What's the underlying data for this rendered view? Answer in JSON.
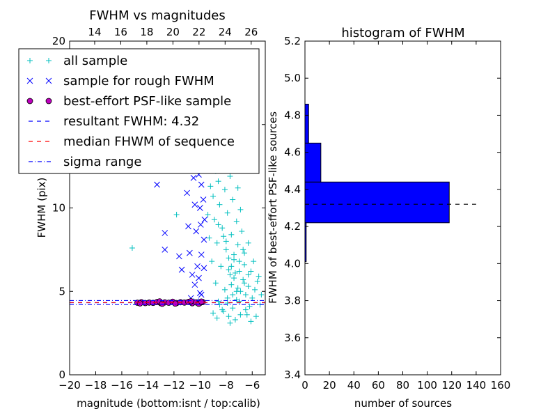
{
  "figure": {
    "background": "#ffffff"
  },
  "chart_data": [
    {
      "type": "scatter",
      "title": "FWHM vs magnitudes",
      "xlabel": "magnitude (bottom:isnt / top:calib)",
      "ylabel": "FWHM (pix)",
      "xlim": [
        -20,
        -5
      ],
      "ylim": [
        0,
        20
      ],
      "top_xlim": [
        12.08,
        27.08
      ],
      "x_ticks": [
        -20,
        -18,
        -16,
        -14,
        -12,
        -10,
        -8,
        -6
      ],
      "x_tick_labels": [
        "−20",
        "−18",
        "−16",
        "−14",
        "−12",
        "−10",
        "−8",
        "−6"
      ],
      "y_ticks": [
        0,
        5,
        10,
        15,
        20
      ],
      "y_tick_labels": [
        "0",
        "5",
        "10",
        "15",
        "20"
      ],
      "top_ticks": [
        14,
        16,
        18,
        20,
        22,
        24,
        26
      ],
      "top_tick_labels": [
        "14",
        "16",
        "18",
        "20",
        "22",
        "24",
        "26"
      ],
      "grid": false,
      "legend_position": "upper-left",
      "colors": {
        "all_sample": "#00bfbf",
        "rough_sample": "#0000ff",
        "psf_face": "#bf00bf",
        "resultant": "#0000ff",
        "median": "#ff0000",
        "sigma": "#0000ff"
      },
      "legend": [
        {
          "label": "all sample",
          "marker": "plus",
          "color": "#00bfbf"
        },
        {
          "label": "sample for rough FWHM",
          "marker": "x",
          "color": "#0000ff"
        },
        {
          "label": "best-effort PSF-like sample",
          "marker": "circle",
          "color": "#bf00bf"
        },
        {
          "label": "resultant FWHM: 4.32",
          "marker": "dashed",
          "color": "#0000ff"
        },
        {
          "label": "median FHWM of sequence",
          "marker": "dashed",
          "color": "#ff0000"
        },
        {
          "label": "sigma range",
          "marker": "dashdot",
          "color": "#0000ff"
        }
      ],
      "series": [
        {
          "name": "all sample",
          "marker": "plus",
          "color": "#00bfbf",
          "points": [
            [
              -7.8,
              3.5
            ],
            [
              -7.5,
              4.0
            ],
            [
              -7.2,
              4.5
            ],
            [
              -6.9,
              5.0
            ],
            [
              -6.6,
              5.5
            ],
            [
              -6.3,
              6.0
            ],
            [
              -8.2,
              3.8
            ],
            [
              -7.9,
              4.6
            ],
            [
              -7.6,
              5.4
            ],
            [
              -7.3,
              6.1
            ],
            [
              -7.0,
              6.8
            ],
            [
              -6.7,
              7.5
            ],
            [
              -8.5,
              4.2
            ],
            [
              -8.1,
              5.1
            ],
            [
              -7.7,
              6.0
            ],
            [
              -7.4,
              6.9
            ],
            [
              -7.1,
              7.8
            ],
            [
              -6.8,
              8.6
            ],
            [
              -8.8,
              5.5
            ],
            [
              -8.4,
              6.5
            ],
            [
              -8.0,
              7.5
            ],
            [
              -7.6,
              8.4
            ],
            [
              -7.2,
              9.2
            ],
            [
              -6.9,
              9.9
            ],
            [
              -9.1,
              6.8
            ],
            [
              -8.7,
              7.9
            ],
            [
              -8.3,
              8.8
            ],
            [
              -7.9,
              9.7
            ],
            [
              -7.5,
              10.5
            ],
            [
              -7.1,
              11.2
            ],
            [
              -9.3,
              8.2
            ],
            [
              -8.9,
              9.3
            ],
            [
              -8.5,
              10.2
            ],
            [
              -8.1,
              11.1
            ],
            [
              -7.7,
              11.9
            ],
            [
              -7.3,
              12.6
            ],
            [
              -9.4,
              9.6
            ],
            [
              -9.0,
              10.7
            ],
            [
              -8.6,
              11.6
            ],
            [
              -8.2,
              12.4
            ],
            [
              -7.8,
              13.2
            ],
            [
              -7.4,
              13.9
            ],
            [
              -9.2,
              11.3
            ],
            [
              -8.8,
              12.2
            ],
            [
              -8.4,
              13.0
            ],
            [
              -8.0,
              13.7
            ],
            [
              -7.6,
              14.5
            ],
            [
              -7.2,
              15.1
            ],
            [
              -8.7,
              3.4
            ],
            [
              -8.3,
              3.9
            ],
            [
              -7.9,
              4.3
            ],
            [
              -7.5,
              4.8
            ],
            [
              -7.1,
              5.2
            ],
            [
              -6.7,
              5.7
            ],
            [
              -6.4,
              3.6
            ],
            [
              -6.2,
              4.1
            ],
            [
              -6.0,
              4.6
            ],
            [
              -5.8,
              5.1
            ],
            [
              -5.6,
              5.6
            ],
            [
              -5.4,
              4.2
            ],
            [
              -7.7,
              3.1
            ],
            [
              -7.3,
              3.3
            ],
            [
              -6.9,
              3.6
            ],
            [
              -6.5,
              3.9
            ],
            [
              -6.1,
              3.2
            ],
            [
              -5.7,
              3.5
            ],
            [
              -8.0,
              8.0
            ],
            [
              -7.8,
              7.0
            ],
            [
              -7.6,
              6.5
            ],
            [
              -7.4,
              5.8
            ],
            [
              -7.2,
              5.0
            ],
            [
              -7.0,
              4.4
            ],
            [
              -8.6,
              9.0
            ],
            [
              -8.2,
              8.3
            ],
            [
              -7.8,
              6.3
            ],
            [
              -7.4,
              7.2
            ],
            [
              -7.0,
              6.2
            ],
            [
              -6.6,
              6.6
            ],
            [
              -9.5,
              12.6
            ],
            [
              -9.1,
              13.4
            ],
            [
              -8.7,
              14.3
            ],
            [
              -8.3,
              15.2
            ],
            [
              -7.9,
              16.0
            ],
            [
              -7.5,
              16.8
            ],
            [
              -9.0,
              3.7
            ],
            [
              -8.6,
              4.4
            ],
            [
              -6.5,
              4.8
            ],
            [
              -6.3,
              5.3
            ],
            [
              -6.1,
              6.2
            ],
            [
              -5.9,
              6.8
            ],
            [
              -15.2,
              7.6
            ],
            [
              -11.8,
              9.6
            ],
            [
              -6.6,
              7.3
            ],
            [
              -6.3,
              7.9
            ],
            [
              -5.5,
              5.9
            ],
            [
              -5.3,
              4.8
            ]
          ]
        },
        {
          "name": "sample for rough FWHM",
          "marker": "x",
          "color": "#0000ff",
          "points": [
            [
              -13.3,
              11.4
            ],
            [
              -12.7,
              8.5
            ],
            [
              -12.7,
              7.5
            ],
            [
              -12.2,
              12.5
            ],
            [
              -11.5,
              15.2
            ],
            [
              -11.6,
              7.1
            ],
            [
              -11.4,
              6.3
            ],
            [
              -11.0,
              14.3
            ],
            [
              -11.0,
              10.9
            ],
            [
              -10.9,
              8.9
            ],
            [
              -10.8,
              7.3
            ],
            [
              -10.6,
              13.4
            ],
            [
              -10.5,
              11.8
            ],
            [
              -10.4,
              10.2
            ],
            [
              -10.3,
              8.6
            ],
            [
              -10.2,
              13.5
            ],
            [
              -10.1,
              12.0
            ],
            [
              -10.0,
              10.0
            ],
            [
              -9.95,
              9.0
            ],
            [
              -9.9,
              7.2
            ],
            [
              -10.6,
              6.0
            ],
            [
              -10.4,
              5.4
            ],
            [
              -10.2,
              6.5
            ],
            [
              -10.1,
              5.8
            ],
            [
              -10.0,
              4.9
            ],
            [
              -9.9,
              11.4
            ],
            [
              -9.85,
              13.0
            ],
            [
              -9.8,
              14.6
            ],
            [
              -9.75,
              10.5
            ],
            [
              -9.7,
              8.1
            ],
            [
              -10.7,
              4.6
            ],
            [
              -10.3,
              4.4
            ],
            [
              -9.9,
              4.8
            ],
            [
              -9.7,
              6.4
            ],
            [
              -9.65,
              9.3
            ],
            [
              -11.2,
              13.9
            ],
            [
              -10.8,
              12.6
            ],
            [
              -10.4,
              14.8
            ],
            [
              -10.0,
              14.1
            ],
            [
              -9.7,
              12.4
            ]
          ]
        },
        {
          "name": "best-effort PSF-like sample",
          "marker": "circle",
          "color": "#bf00bf",
          "points": [
            [
              -14.8,
              4.32
            ],
            [
              -14.5,
              4.35
            ],
            [
              -14.2,
              4.3
            ],
            [
              -13.9,
              4.33
            ],
            [
              -13.6,
              4.31
            ],
            [
              -13.3,
              4.36
            ],
            [
              -13.0,
              4.29
            ],
            [
              -12.7,
              4.34
            ],
            [
              -12.4,
              4.32
            ],
            [
              -12.1,
              4.38
            ],
            [
              -11.8,
              4.3
            ],
            [
              -11.5,
              4.35
            ],
            [
              -11.2,
              4.33
            ],
            [
              -10.9,
              4.37
            ],
            [
              -10.6,
              4.29
            ],
            [
              -10.3,
              4.34
            ],
            [
              -10.0,
              4.31
            ],
            [
              -9.8,
              4.36
            ],
            [
              -14.6,
              4.28
            ],
            [
              -13.1,
              4.4
            ],
            [
              -11.9,
              4.27
            ],
            [
              -10.7,
              4.41
            ],
            [
              -10.1,
              4.26
            ],
            [
              -9.9,
              4.39
            ],
            [
              -12.9,
              4.26
            ]
          ]
        }
      ],
      "hlines": [
        {
          "name": "resultant FWHM: 4.32",
          "y": 4.32,
          "style": "dashed",
          "color": "#0000ff"
        },
        {
          "name": "median FHWM of sequence",
          "y": 4.33,
          "style": "dashed",
          "color": "#ff0000"
        },
        {
          "name": "sigma range",
          "y": 4.21,
          "style": "dashdot",
          "color": "#0000ff"
        },
        {
          "name": "sigma range",
          "y": 4.45,
          "style": "dashdot",
          "color": "#0000ff"
        }
      ]
    },
    {
      "type": "bar",
      "orientation": "horizontal",
      "title": "histogram of FWHM",
      "xlabel": "number of sources",
      "ylabel": "FWHM of best-effort PSF-like sources",
      "xlim": [
        0,
        160
      ],
      "ylim": [
        3.4,
        5.2
      ],
      "x_ticks": [
        0,
        20,
        40,
        60,
        80,
        100,
        120,
        140,
        160
      ],
      "x_tick_labels": [
        "0",
        "20",
        "40",
        "60",
        "80",
        "100",
        "120",
        "140",
        "160"
      ],
      "y_ticks": [
        3.4,
        3.6,
        3.8,
        4.0,
        4.2,
        4.4,
        4.6,
        4.8,
        5.0,
        5.2
      ],
      "y_tick_labels": [
        "3.4",
        "3.6",
        "3.8",
        "4.0",
        "4.2",
        "4.4",
        "4.6",
        "4.8",
        "5.0",
        "5.2"
      ],
      "grid": false,
      "bar_color": "#0000ff",
      "bins": [
        {
          "from": 4.01,
          "to": 4.22,
          "count": 1
        },
        {
          "from": 4.22,
          "to": 4.44,
          "count": 118
        },
        {
          "from": 4.44,
          "to": 4.65,
          "count": 13
        },
        {
          "from": 4.65,
          "to": 4.86,
          "count": 3
        },
        {
          "from": 4.86,
          "to": 5.08,
          "count": 0
        }
      ],
      "hline": {
        "y": 4.32,
        "x_from": 0,
        "x_to": 140,
        "style": "dashed",
        "color": "#000000"
      }
    }
  ]
}
